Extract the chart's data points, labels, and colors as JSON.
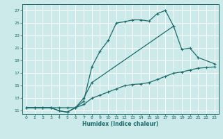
{
  "xlabel": "Humidex (Indice chaleur)",
  "bg_color": "#cceaea",
  "grid_color": "#ffffff",
  "line_color": "#1a6b6b",
  "xlim": [
    -0.5,
    23.5
  ],
  "ylim": [
    10.5,
    28
  ],
  "xticks": [
    0,
    1,
    2,
    3,
    4,
    5,
    6,
    7,
    8,
    9,
    10,
    11,
    12,
    13,
    14,
    15,
    16,
    17,
    18,
    19,
    20,
    21,
    22,
    23
  ],
  "yticks": [
    11,
    13,
    15,
    17,
    19,
    21,
    23,
    25,
    27
  ],
  "curve_top": {
    "x": [
      0,
      1,
      2,
      3,
      4,
      5,
      6,
      7,
      8,
      9,
      10,
      11,
      12,
      13,
      14,
      15,
      16,
      17,
      18
    ],
    "y": [
      11.5,
      11.5,
      11.5,
      11.5,
      11.5,
      11.5,
      11.5,
      12.5,
      18.0,
      20.5,
      22.2,
      25.0,
      25.2,
      25.5,
      25.5,
      25.3,
      26.5,
      27.0,
      24.5
    ]
  },
  "curve_mid_part1": {
    "x": [
      0,
      1,
      2,
      3,
      4,
      5,
      6,
      7,
      8
    ],
    "y": [
      11.5,
      11.5,
      11.5,
      11.5,
      11.0,
      10.8,
      11.5,
      13.0,
      15.5
    ]
  },
  "curve_mid_part2": {
    "x": [
      18,
      19,
      20,
      21,
      23
    ],
    "y": [
      24.5,
      20.8,
      21.0,
      19.5,
      18.5
    ]
  },
  "line_connect": {
    "x": [
      8,
      18
    ],
    "y": [
      15.5,
      24.5
    ]
  },
  "curve_bot": {
    "x": [
      0,
      1,
      2,
      3,
      4,
      5,
      6,
      7,
      8,
      9,
      10,
      11,
      12,
      13,
      14,
      15,
      16,
      17,
      18,
      19,
      20,
      21,
      22,
      23
    ],
    "y": [
      11.5,
      11.5,
      11.5,
      11.5,
      11.0,
      10.8,
      11.5,
      12.0,
      13.0,
      13.5,
      14.0,
      14.5,
      15.0,
      15.2,
      15.3,
      15.5,
      16.0,
      16.5,
      17.0,
      17.2,
      17.5,
      17.8,
      17.9,
      18.0
    ]
  }
}
